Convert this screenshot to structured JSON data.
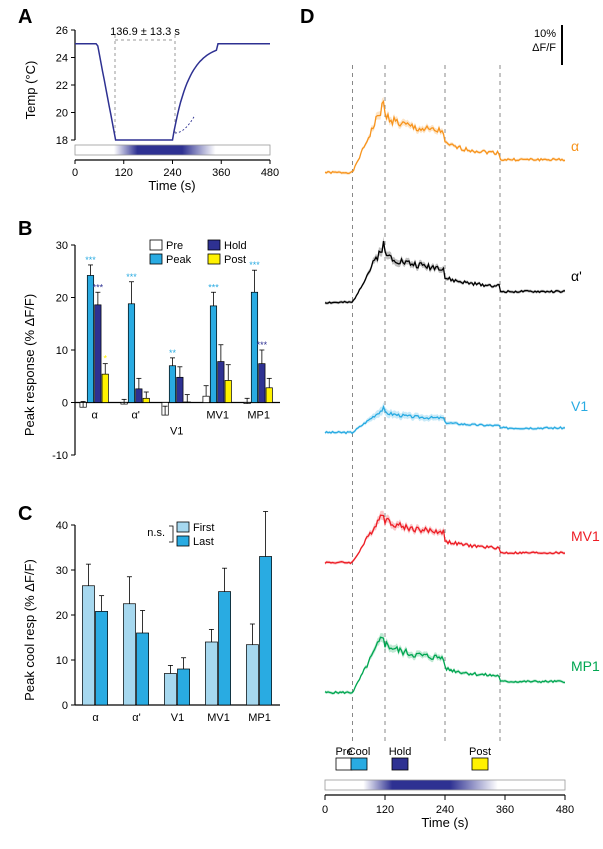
{
  "colors": {
    "alpha": "#f7941d",
    "alphaPrime": "#000000",
    "V1": "#29abe2",
    "MV1": "#ed1c24",
    "MP1": "#00a651",
    "pre": "#ffffff",
    "peak": "#29abe2",
    "hold": "#2e3192",
    "post": "#fff200",
    "first": "#a6d8ef",
    "last": "#29abe2",
    "tempLine": "#2e3192",
    "gradientStart": "#ffffff",
    "gradientMid": "#2e3192"
  },
  "panelA": {
    "label": "A",
    "ylabel": "Temp (°C)",
    "xlabel": "Time (s)",
    "annotation": "136.9 ± 13.3 s",
    "xlim": [
      0,
      480
    ],
    "xticks": [
      0,
      120,
      240,
      360,
      480
    ],
    "ylim": [
      18,
      26
    ],
    "yticks": [
      18,
      20,
      22,
      24,
      26
    ],
    "gradient_x": [
      50,
      270
    ]
  },
  "panelB": {
    "label": "B",
    "ylabel": "Peak response (% ΔF/F)",
    "xlim_categories": [
      "α",
      "α'",
      "V1",
      "MV1",
      "MP1"
    ],
    "category_colors": [
      "#f7941d",
      "#000000",
      "#29abe2",
      "#ed1c24",
      "#00a651"
    ],
    "ylim": [
      -10,
      30
    ],
    "yticks": [
      -10,
      0,
      10,
      20,
      30
    ],
    "legend": [
      {
        "label": "Pre",
        "color": "#ffffff"
      },
      {
        "label": "Peak",
        "color": "#29abe2"
      },
      {
        "label": "Hold",
        "color": "#2e3192"
      },
      {
        "label": "Post",
        "color": "#fff200"
      }
    ],
    "data": {
      "alpha": {
        "pre": -0.9,
        "peak": 24.2,
        "hold": 18.6,
        "post": 5.4,
        "pre_err": 1.1,
        "peak_err": 2.0,
        "hold_err": 2.4,
        "post_err": 2.0,
        "sig": {
          "peak": "***",
          "hold": "***",
          "post": "*"
        }
      },
      "alphaPrime": {
        "pre": -0.3,
        "peak": 18.8,
        "hold": 2.6,
        "post": 0.8,
        "pre_err": 0.9,
        "peak_err": 4.2,
        "hold_err": 2.0,
        "post_err": 1.2,
        "sig": {
          "peak": "***"
        }
      },
      "V1": {
        "pre": -2.4,
        "peak": 7.0,
        "hold": 4.8,
        "post": 0.1,
        "pre_err": 1.7,
        "peak_err": 1.5,
        "hold_err": 2.0,
        "post_err": 1.4,
        "sig": {
          "peak": "**"
        }
      },
      "MV1": {
        "pre": 1.2,
        "peak": 18.4,
        "hold": 7.8,
        "post": 4.2,
        "pre_err": 2.0,
        "peak_err": 2.6,
        "hold_err": 3.2,
        "post_err": 3.0,
        "sig": {
          "peak": "***"
        }
      },
      "MP1": {
        "pre": -0.2,
        "peak": 21.0,
        "hold": 7.4,
        "post": 2.8,
        "pre_err": 1.0,
        "peak_err": 4.2,
        "hold_err": 2.6,
        "post_err": 1.8,
        "sig": {
          "peak": "***",
          "hold": "***"
        }
      }
    }
  },
  "panelC": {
    "label": "C",
    "ylabel": "Peak cool resp (% ΔF/F)",
    "xlim_categories": [
      "α",
      "α'",
      "V1",
      "MV1",
      "MP1"
    ],
    "category_colors": [
      "#f7941d",
      "#000000",
      "#29abe2",
      "#ed1c24",
      "#00a651"
    ],
    "ylim": [
      0,
      40
    ],
    "yticks": [
      0,
      10,
      20,
      30,
      40
    ],
    "legend_ns": "n.s.",
    "legend": [
      {
        "label": "First",
        "color": "#a6d8ef"
      },
      {
        "label": "Last",
        "color": "#29abe2"
      }
    ],
    "data": {
      "alpha": {
        "first": 26.5,
        "last": 20.8,
        "first_err": 4.8,
        "last_err": 3.5
      },
      "alphaPrime": {
        "first": 22.5,
        "last": 16.0,
        "first_err": 6.0,
        "last_err": 5.0
      },
      "V1": {
        "first": 7.0,
        "last": 8.0,
        "first_err": 1.8,
        "last_err": 2.5
      },
      "MV1": {
        "first": 14.0,
        "last": 25.2,
        "first_err": 2.8,
        "last_err": 5.2
      },
      "MP1": {
        "first": 13.4,
        "last": 33.0,
        "first_err": 4.6,
        "last_err": 10.0
      }
    }
  },
  "panelD": {
    "label": "D",
    "scalebar_label": "10%\nΔF/F",
    "xlabel": "Time (s)",
    "xlim": [
      0,
      480
    ],
    "xticks": [
      0,
      120,
      240,
      360,
      480
    ],
    "vlines_s": [
      55,
      120,
      240,
      350
    ],
    "phase_legend": [
      "Pre",
      "Cool",
      "Hold",
      "Post"
    ],
    "phase_colors": [
      "#ffffff",
      "#29abe2",
      "#2e3192",
      "#fff200"
    ],
    "phase_positions": [
      38,
      68,
      150,
      310
    ],
    "traces": [
      "α",
      "α'",
      "V1",
      "MV1",
      "MP1"
    ],
    "trace_colors": [
      "#f7941d",
      "#000000",
      "#29abe2",
      "#ed1c24",
      "#00a651"
    ]
  }
}
